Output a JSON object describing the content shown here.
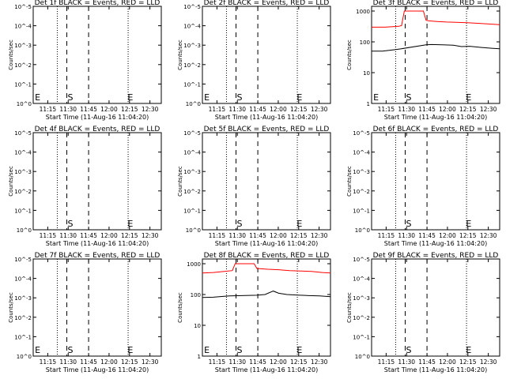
{
  "chart_data": [
    {
      "type": "line",
      "title": "Det 1f BLACK = Events, RED = LLD",
      "xlabel": "Start Time (11-Aug-16 11:04:20)",
      "ylabel": "Counts/sec",
      "x_tick_labels": [
        "11:15",
        "11:30",
        "11:45",
        "12:00",
        "12:15",
        "12:30"
      ],
      "y_scale": "log",
      "y_tick_labels": [
        "10^0",
        "10^-1",
        "10^-2",
        "10^-3",
        "10^-4",
        "10^-5"
      ],
      "markers": [
        {
          "label": "E",
          "time": "11:05"
        },
        {
          "label": "S",
          "time": "11:29"
        },
        {
          "label": "E",
          "time": "12:13"
        }
      ],
      "series": []
    },
    {
      "type": "line",
      "title": "Det 2f BLACK = Events, RED = LLD",
      "xlabel": "Start Time (11-Aug-16 11:04:20)",
      "ylabel": "Counts/sec",
      "x_tick_labels": [
        "11:15",
        "11:30",
        "11:45",
        "12:00",
        "12:15",
        "12:30"
      ],
      "y_scale": "log",
      "y_tick_labels": [
        "10^0",
        "10^-1",
        "10^-2",
        "10^-3",
        "10^-4",
        "10^-5"
      ],
      "markers": [
        {
          "label": "E",
          "time": "11:05"
        },
        {
          "label": "S",
          "time": "11:29"
        },
        {
          "label": "E",
          "time": "12:13"
        }
      ],
      "series": []
    },
    {
      "type": "line",
      "title": "Det 3f BLACK = Events, RED = LLD",
      "xlabel": "Start Time (11-Aug-16 11:04:20)",
      "ylabel": "Counts/sec",
      "x_tick_labels": [
        "11:15",
        "11:30",
        "11:45",
        "12:00",
        "12:15",
        "12:30"
      ],
      "y_scale": "log",
      "y_tick_labels": [
        "1",
        "10",
        "100",
        "1000"
      ],
      "markers": [
        {
          "label": "E",
          "time": "11:05"
        },
        {
          "label": "S",
          "time": "11:29"
        },
        {
          "label": "E",
          "time": "12:13"
        }
      ],
      "series": [
        {
          "color": "#ff0000",
          "x": [
            0,
            10,
            20,
            22,
            24,
            30,
            38,
            40,
            42,
            48,
            55,
            62,
            70,
            78,
            86,
            94
          ],
          "y": [
            300,
            300,
            320,
            340,
            1000,
            1000,
            1000,
            500,
            480,
            460,
            440,
            430,
            420,
            400,
            380,
            360
          ]
        },
        {
          "color": "#000000",
          "x": [
            0,
            8,
            16,
            22,
            40,
            44,
            52,
            60,
            66,
            72,
            80,
            88,
            94
          ],
          "y": [
            50,
            50,
            55,
            60,
            80,
            82,
            80,
            78,
            70,
            72,
            66,
            62,
            60
          ]
        }
      ]
    },
    {
      "type": "line",
      "title": "Det 4f BLACK = Events, RED = LLD",
      "xlabel": "Start Time (11-Aug-16 11:04:20)",
      "ylabel": "Counts/sec",
      "x_tick_labels": [
        "11:15",
        "11:30",
        "11:45",
        "12:00",
        "12:15",
        "12:30"
      ],
      "y_scale": "log",
      "y_tick_labels": [
        "10^0",
        "10^-1",
        "10^-2",
        "10^-3",
        "10^-4",
        "10^-5"
      ],
      "markers": [
        {
          "label": "S",
          "time": "11:29"
        },
        {
          "label": "E",
          "time": "12:13"
        }
      ],
      "series": []
    },
    {
      "type": "line",
      "title": "Det 5f BLACK = Events, RED = LLD",
      "xlabel": "Start Time (11-Aug-16 11:04:20)",
      "ylabel": "Counts/sec",
      "x_tick_labels": [
        "11:15",
        "11:30",
        "11:45",
        "12:00",
        "12:15",
        "12:30"
      ],
      "y_scale": "log",
      "y_tick_labels": [
        "10^0",
        "10^-1",
        "10^-2",
        "10^-3",
        "10^-4",
        "10^-5"
      ],
      "markers": [
        {
          "label": "S",
          "time": "11:29"
        },
        {
          "label": "E",
          "time": "12:13"
        }
      ],
      "series": []
    },
    {
      "type": "line",
      "title": "Det 6f BLACK = Events, RED = LLD",
      "xlabel": "Start Time (11-Aug-16 11:04:20)",
      "ylabel": "Counts/sec",
      "x_tick_labels": [
        "11:15",
        "11:30",
        "11:45",
        "12:00",
        "12:15",
        "12:30"
      ],
      "y_scale": "log",
      "y_tick_labels": [
        "10^0",
        "10^-1",
        "10^-2",
        "10^-3",
        "10^-4",
        "10^-5"
      ],
      "markers": [
        {
          "label": "S",
          "time": "11:29"
        },
        {
          "label": "E",
          "time": "12:13"
        }
      ],
      "series": []
    },
    {
      "type": "line",
      "title": "Det 7f BLACK = Events, RED = LLD",
      "xlabel": "Start Time (11-Aug-16 11:04:20)",
      "ylabel": "Counts/sec",
      "x_tick_labels": [
        "11:15",
        "11:30",
        "11:45",
        "12:00",
        "12:15",
        "12:30"
      ],
      "y_scale": "log",
      "y_tick_labels": [
        "10^0",
        "10^-1",
        "10^-2",
        "10^-3",
        "10^-4",
        "10^-5"
      ],
      "markers": [
        {
          "label": "E",
          "time": "11:05"
        },
        {
          "label": "S",
          "time": "11:29"
        },
        {
          "label": "E",
          "time": "12:13"
        }
      ],
      "series": []
    },
    {
      "type": "line",
      "title": "Det 8f BLACK = Events, RED = LLD",
      "xlabel": "Start Time (11-Aug-16 11:04:20)",
      "ylabel": "Counts/sec",
      "x_tick_labels": [
        "11:15",
        "11:30",
        "11:45",
        "12:00",
        "12:15",
        "12:30"
      ],
      "y_scale": "log",
      "y_tick_labels": [
        "1",
        "10",
        "100",
        "1000"
      ],
      "markers": [
        {
          "label": "E",
          "time": "11:05"
        },
        {
          "label": "S",
          "time": "11:29"
        },
        {
          "label": "E",
          "time": "12:13"
        }
      ],
      "series": [
        {
          "color": "#ff0000",
          "x": [
            0,
            8,
            16,
            22,
            24,
            30,
            36,
            38,
            40,
            48,
            56,
            64,
            72,
            80,
            88,
            94
          ],
          "y": [
            500,
            520,
            560,
            600,
            1000,
            1000,
            1000,
            1000,
            700,
            660,
            640,
            600,
            580,
            560,
            520,
            500
          ]
        },
        {
          "color": "#000000",
          "x": [
            0,
            8,
            16,
            20,
            40,
            46,
            52,
            56,
            62,
            70,
            78,
            86,
            94
          ],
          "y": [
            80,
            82,
            88,
            90,
            95,
            100,
            130,
            110,
            100,
            96,
            92,
            90,
            85
          ]
        }
      ]
    },
    {
      "type": "line",
      "title": "Det 9f BLACK = Events, RED = LLD",
      "xlabel": "Start Time (11-Aug-16 11:04:20)",
      "ylabel": "Counts/sec",
      "x_tick_labels": [
        "11:15",
        "11:30",
        "11:45",
        "12:00",
        "12:15",
        "12:30"
      ],
      "y_scale": "log",
      "y_tick_labels": [
        "10^0",
        "10^-1",
        "10^-2",
        "10^-3",
        "10^-4",
        "10^-5"
      ],
      "markers": [
        {
          "label": "S",
          "time": "11:29"
        },
        {
          "label": "E",
          "time": "12:13"
        }
      ],
      "series": []
    }
  ]
}
